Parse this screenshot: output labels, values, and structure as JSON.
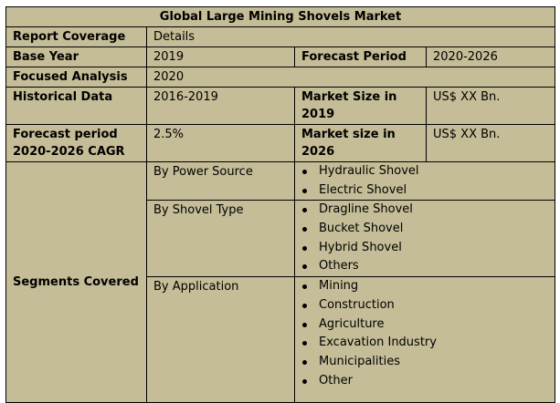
{
  "title": "Global Large Mining Shovels Market",
  "rows": {
    "report_coverage": {
      "label": "Report Coverage",
      "value": "Details"
    },
    "base_year": {
      "label": "Base Year",
      "value": "2019",
      "label2": "Forecast Period",
      "value2": "2020-2026"
    },
    "focused_analysis": {
      "label": "Focused Analysis",
      "value": "2020"
    },
    "historical_data": {
      "label": "Historical Data",
      "value": "2016-2019",
      "label2": "Market Size in 2019",
      "value2": "US$ XX Bn."
    },
    "forecast_cagr": {
      "label": "Forecast period 2020-2026 CAGR",
      "value": "2.5%",
      "label2": "Market size in 2026",
      "value2": "US$ XX Bn."
    }
  },
  "segments": {
    "label": "Segments Covered",
    "groups": [
      {
        "name": "By Power Source",
        "items": [
          "Hydraulic Shovel",
          "Electric Shovel"
        ]
      },
      {
        "name": "By Shovel Type",
        "items": [
          "Dragline Shovel",
          "Bucket Shovel",
          "Hybrid Shovel",
          "Others"
        ]
      },
      {
        "name": "By Application",
        "items": [
          "Mining",
          "Construction",
          "Agriculture",
          "Excavation Industry",
          "Municipalities",
          "Other"
        ]
      }
    ]
  }
}
